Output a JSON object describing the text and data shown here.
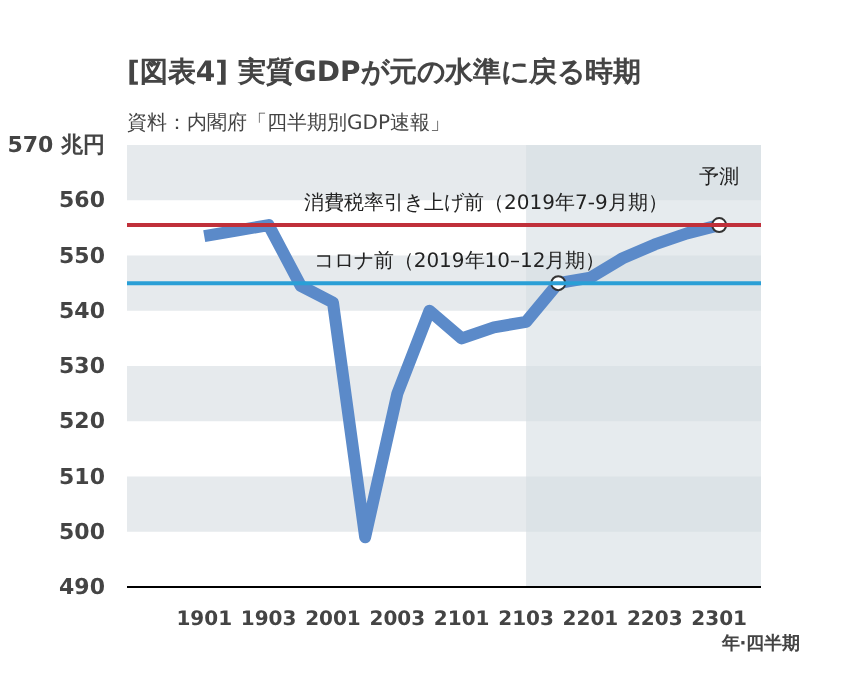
{
  "chart_data": {
    "type": "line",
    "title": "[図表4] 実質GDPが元の水準に戻る時期",
    "subtitle": "資料：内閣府「四半期別GDP速報」",
    "xlabel": "年·四半期",
    "categories": [
      "1901",
      null,
      "1903",
      null,
      "2001",
      null,
      "2003",
      null,
      "2101",
      null,
      "2103",
      null,
      "2201",
      null,
      "2203",
      null,
      "2301"
    ],
    "series": [
      {
        "color": "#5b8ac9",
        "values": [
          553.5,
          554.5,
          555.5,
          544.5,
          541.5,
          499,
          525,
          540,
          535,
          537,
          538,
          545,
          546,
          549.5,
          552,
          554,
          555.5
        ]
      },
      {
        "type": "scatter",
        "color": "#ffffff",
        "marker": "circle",
        "values": [
          null,
          null,
          null,
          null,
          null,
          null,
          null,
          null,
          null,
          null,
          null,
          545,
          null,
          null,
          null,
          null,
          555.5
        ]
      }
    ],
    "ylim": [
      490,
      570
    ],
    "yticks": [
      490,
      500,
      510,
      520,
      530,
      540,
      550,
      560,
      {
        "value": 570,
        "label": "570 兆円"
      }
    ],
    "marker": "none",
    "ref_lines": [
      {
        "axis": "y",
        "value": 555.5,
        "label": "消費税率引き上げ前（2019年7-9月期）",
        "color": "#c0303a"
      },
      {
        "axis": "y",
        "value": 545,
        "label": "コロナ前（2019年10–12月期）",
        "color": "#2a9fd6"
      }
    ],
    "bands": [
      {
        "axis": "x",
        "from": "2103",
        "to": "2301",
        "label": "予測",
        "color": "#d5dde3"
      }
    ]
  }
}
